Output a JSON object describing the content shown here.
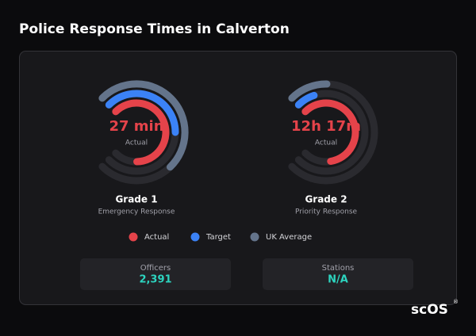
{
  "header": {
    "title": "Police Response Times in Calverton"
  },
  "legend": [
    {
      "name": "Actual",
      "color": "#e5434a"
    },
    {
      "name": "Target",
      "color": "#3b82f6"
    },
    {
      "name": "UK Average",
      "color": "#64748b"
    }
  ],
  "gauges": [
    {
      "title": "Grade 1",
      "subtitle": "Emergency Response",
      "value_label": "27 min",
      "value_caption": "Actual",
      "values": [
        83,
        50,
        67
      ]
    },
    {
      "title": "Grade 2",
      "subtitle": "Priority Response",
      "value_label": "12h 17m",
      "value_caption": "Actual",
      "values": [
        80,
        10,
        17
      ]
    }
  ],
  "stats": [
    {
      "label": "Officers",
      "value": "2,391"
    },
    {
      "label": "Stations",
      "value": "N/A"
    }
  ],
  "brand": "scOS"
}
